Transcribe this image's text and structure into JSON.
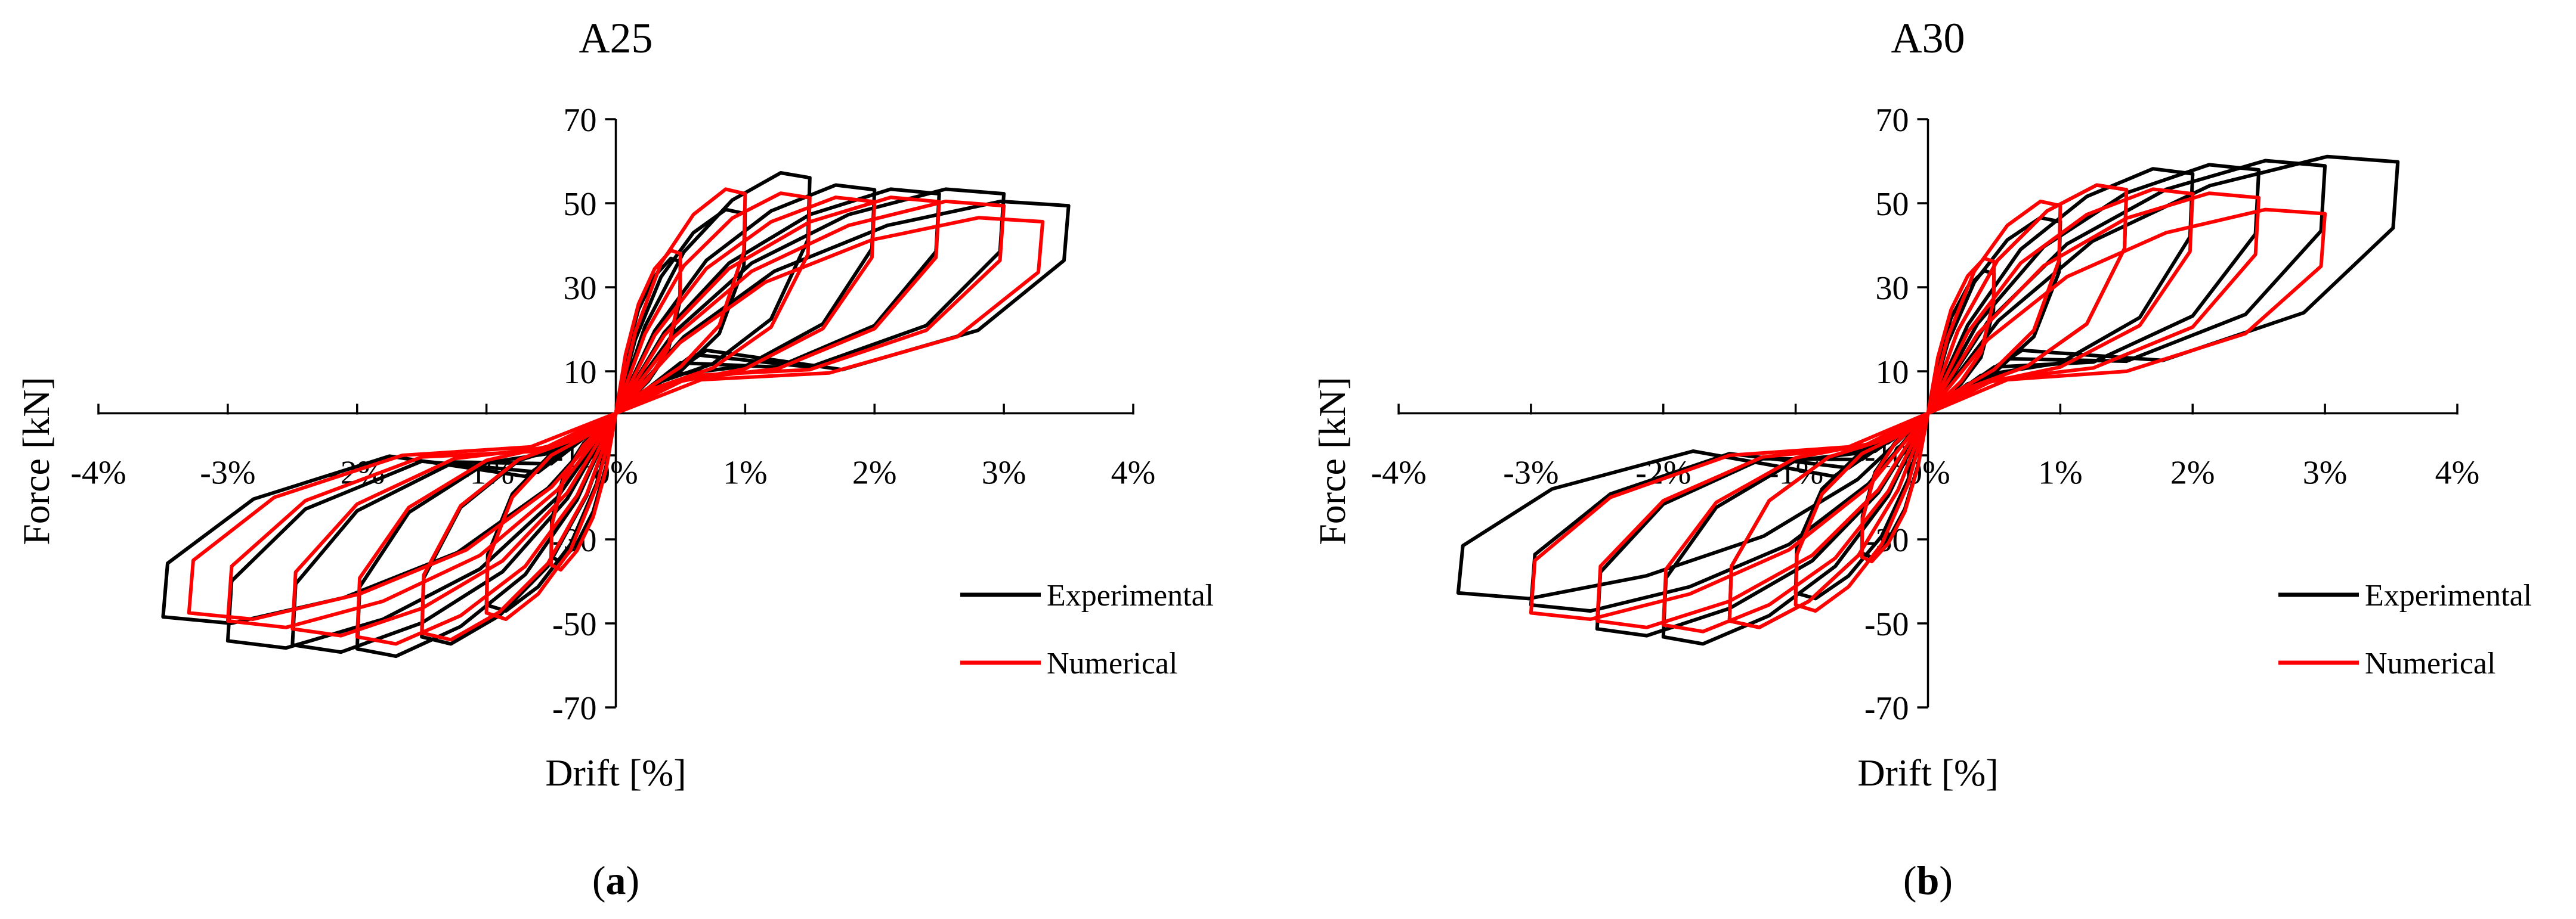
{
  "colors": {
    "experimental": "#000000",
    "numerical": "#ff0000",
    "axis": "#000000"
  },
  "chart_data": [
    {
      "type": "line",
      "panel_label": "(a)",
      "panel_label_main": "a",
      "title": "A25",
      "xlabel": "Drift [%]",
      "ylabel": "Force [kN]",
      "xlim": [
        -4,
        4
      ],
      "ylim": [
        -70,
        70
      ],
      "xticks": [
        -4,
        -3,
        -2,
        -1,
        0,
        1,
        2,
        3,
        4
      ],
      "xtick_labels": [
        "-4%",
        "-3%",
        "-2%",
        "-1%",
        "0%",
        "1%",
        "2%",
        "3%",
        "4%"
      ],
      "yticks": [
        70,
        50,
        30,
        10,
        -10,
        -30,
        -50,
        -70
      ],
      "ytick_labels": [
        "70",
        "50",
        "30",
        "10",
        "-10",
        "-30",
        "-50",
        "-70"
      ],
      "legend": [
        "Experimental",
        "Numerical"
      ],
      "legend_position": "lower-right",
      "series": [
        {
          "name": "Experimental",
          "loops": [
            {
              "d": 0.5,
              "fmax": 38,
              "fmin": -36,
              "pinch": 3
            },
            {
              "d": 1.0,
              "fmax": 50,
              "fmin": -48,
              "pinch": 5
            },
            {
              "d": 1.5,
              "fmax": 59,
              "fmin": -56,
              "pinch": 7
            },
            {
              "d": 2.0,
              "fmax": 56,
              "fmin": -59,
              "pinch": 9
            },
            {
              "d": 2.5,
              "fmax": 55,
              "fmin": -58,
              "pinch": 12
            },
            {
              "d": 3.0,
              "fmax": 55,
              "fmin": -57,
              "pinch": 14
            },
            {
              "d": 3.5,
              "fmax": 52,
              "fmin": -51,
              "pinch": 15
            }
          ]
        },
        {
          "name": "Numerical",
          "loops": [
            {
              "d": 0.5,
              "fmax": 40,
              "fmin": -38,
              "pinch": 3
            },
            {
              "d": 1.0,
              "fmax": 55,
              "fmin": -50,
              "pinch": 5
            },
            {
              "d": 1.5,
              "fmax": 54,
              "fmin": -55,
              "pinch": 6
            },
            {
              "d": 2.0,
              "fmax": 53,
              "fmin": -56,
              "pinch": 7
            },
            {
              "d": 2.5,
              "fmax": 53,
              "fmin": -54,
              "pinch": 8
            },
            {
              "d": 3.0,
              "fmax": 52,
              "fmin": -52,
              "pinch": 9
            },
            {
              "d": 3.3,
              "fmax": 48,
              "fmin": -50,
              "pinch": 8
            }
          ]
        }
      ]
    },
    {
      "type": "line",
      "panel_label": "(b)",
      "panel_label_main": "b",
      "title": "A30",
      "xlabel": "Drift [%]",
      "ylabel": "Force [kN]",
      "xlim": [
        -4,
        4
      ],
      "ylim": [
        -70,
        70
      ],
      "xticks": [
        -4,
        -3,
        -2,
        -1,
        0,
        1,
        2,
        3,
        4
      ],
      "xtick_labels": [
        "-4%",
        "-3%",
        "-2%",
        "-1%",
        "0%",
        "1%",
        "2%",
        "3%",
        "4%"
      ],
      "yticks": [
        70,
        50,
        30,
        10,
        -10,
        -30,
        -50,
        -70
      ],
      "ytick_labels": [
        "70",
        "50",
        "30",
        "10",
        "-10",
        "-30",
        "-50",
        "-70"
      ],
      "legend": [
        "Experimental",
        "Numerical"
      ],
      "legend_position": "lower-right",
      "series": [
        {
          "name": "Experimental",
          "loops": [
            {
              "d": 0.5,
              "fmax": 35,
              "fmin": -35,
              "pinch": 3
            },
            {
              "d": 1.0,
              "fmax": 48,
              "fmin": -45,
              "pinch": 5
            },
            {
              "d": 1.5,
              "fmax": 56,
              "fmin": -52,
              "pinch": 7
            },
            {
              "d": 2.0,
              "fmax": 60,
              "fmin": -56,
              "pinch": 9
            },
            {
              "d": 2.5,
              "fmax": 61,
              "fmin": -54,
              "pinch": 11
            },
            {
              "d": 3.0,
              "fmax": 62,
              "fmin": -48,
              "pinch": 13
            },
            {
              "d": 3.55,
              "fmax": 63,
              "fmin": -45,
              "pinch": 15
            }
          ]
        },
        {
          "name": "Numerical",
          "loops": [
            {
              "d": 0.5,
              "fmax": 38,
              "fmin": -36,
              "pinch": 3
            },
            {
              "d": 1.0,
              "fmax": 52,
              "fmin": -48,
              "pinch": 5
            },
            {
              "d": 1.5,
              "fmax": 56,
              "fmin": -52,
              "pinch": 6
            },
            {
              "d": 2.0,
              "fmax": 55,
              "fmin": -53,
              "pinch": 7
            },
            {
              "d": 2.5,
              "fmax": 54,
              "fmin": -52,
              "pinch": 8
            },
            {
              "d": 3.0,
              "fmax": 50,
              "fmin": -50,
              "pinch": 8
            }
          ]
        }
      ]
    }
  ]
}
